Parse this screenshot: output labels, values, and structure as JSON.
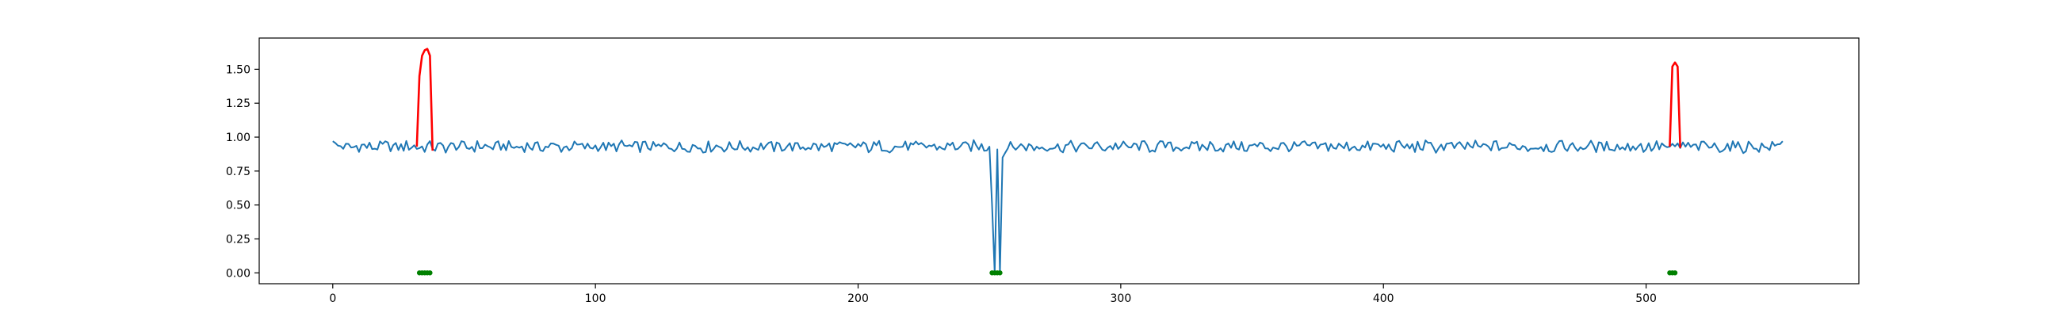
{
  "chart_data": {
    "type": "line",
    "title": "",
    "xlabel": "",
    "ylabel": "",
    "xlim": [
      -28,
      581
    ],
    "ylim": [
      -0.08,
      1.73
    ],
    "x_ticks": [
      0,
      100,
      200,
      300,
      400,
      500
    ],
    "y_ticks": [
      0.0,
      0.25,
      0.5,
      0.75,
      1.0,
      1.25,
      1.5
    ],
    "x_tick_labels": [
      "0",
      "100",
      "200",
      "300",
      "400",
      "500"
    ],
    "y_tick_labels": [
      "0.00",
      "0.25",
      "0.50",
      "0.75",
      "1.00",
      "1.25",
      "1.50"
    ],
    "grid": false,
    "legend": "none",
    "colors": {
      "signal": "#1f77b4",
      "high_anomaly": "#ff0000",
      "marker": "#008000"
    },
    "x_range": [
      0,
      552
    ],
    "baseline": 0.93,
    "noise_amplitude": 0.055,
    "series": [
      {
        "role": "signal",
        "color": "#1f77b4",
        "key_points": [
          {
            "x": 0,
            "y": 0.97
          },
          {
            "x": 31,
            "y": 0.94
          },
          {
            "x": 39,
            "y": 0.9
          },
          {
            "x": 250,
            "y": 0.93
          },
          {
            "x": 251,
            "y": 0.5
          },
          {
            "x": 252,
            "y": 0.0
          },
          {
            "x": 254,
            "y": 0.0
          },
          {
            "x": 255,
            "y": 0.85
          },
          {
            "x": 509,
            "y": 0.93
          },
          {
            "x": 513,
            "y": 0.92
          },
          {
            "x": 552,
            "y": 0.97
          }
        ]
      },
      {
        "role": "high_anomaly",
        "color": "#ff0000",
        "points": [
          {
            "x": 32,
            "y": 0.93
          },
          {
            "x": 33,
            "y": 1.45
          },
          {
            "x": 34,
            "y": 1.6
          },
          {
            "x": 35,
            "y": 1.64
          },
          {
            "x": 36,
            "y": 1.65
          },
          {
            "x": 37,
            "y": 1.6
          },
          {
            "x": 38,
            "y": 0.9
          }
        ]
      },
      {
        "role": "high_anomaly",
        "color": "#ff0000",
        "points": [
          {
            "x": 509,
            "y": 0.93
          },
          {
            "x": 510,
            "y": 1.52
          },
          {
            "x": 511,
            "y": 1.55
          },
          {
            "x": 512,
            "y": 1.52
          },
          {
            "x": 513,
            "y": 0.92
          }
        ]
      }
    ],
    "markers": [
      {
        "x": [
          33,
          37
        ],
        "y": 0.0,
        "color": "#008000"
      },
      {
        "x": [
          251,
          254
        ],
        "y": 0.0,
        "color": "#008000"
      },
      {
        "x": [
          509,
          511
        ],
        "y": 0.0,
        "color": "#008000"
      }
    ]
  }
}
